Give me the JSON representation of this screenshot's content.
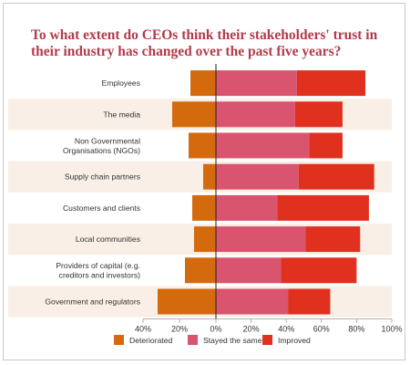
{
  "chart_data": {
    "type": "bar",
    "stacked": true,
    "diverging": true,
    "title": "To what extent do CEOs think their stakeholders' trust in their industry has changed over the past five years?",
    "categories": [
      [
        "Employees"
      ],
      [
        "The media"
      ],
      [
        "Non Governmental",
        "Organisations (NGOs)"
      ],
      [
        "Supply chain partners"
      ],
      [
        "Customers and clients"
      ],
      [
        "Local communities"
      ],
      [
        "Providers of capital (e.g.",
        "creditors and investors)"
      ],
      [
        "Government and regulators"
      ]
    ],
    "series": [
      {
        "name": "Deteriorated",
        "color": "#d36b0e",
        "values": [
          -14,
          -24,
          -15,
          -7,
          -13,
          -12,
          -17,
          -32
        ]
      },
      {
        "name": "Stayed the same",
        "color": "#d9546e",
        "values": [
          46,
          45,
          53,
          47,
          35,
          51,
          37,
          41
        ]
      },
      {
        "name": "Improved",
        "color": "#e0301e",
        "values": [
          39,
          27,
          19,
          43,
          52,
          31,
          43,
          24
        ]
      }
    ],
    "xlim": [
      -40,
      100
    ],
    "xticks": [
      -40,
      -20,
      0,
      20,
      40,
      60,
      80,
      100
    ],
    "xtick_labels": [
      "40%",
      "20%",
      "0%",
      "20%",
      "40%",
      "60%",
      "80%",
      "100%"
    ],
    "legend_position": "bottom",
    "grid": false
  }
}
